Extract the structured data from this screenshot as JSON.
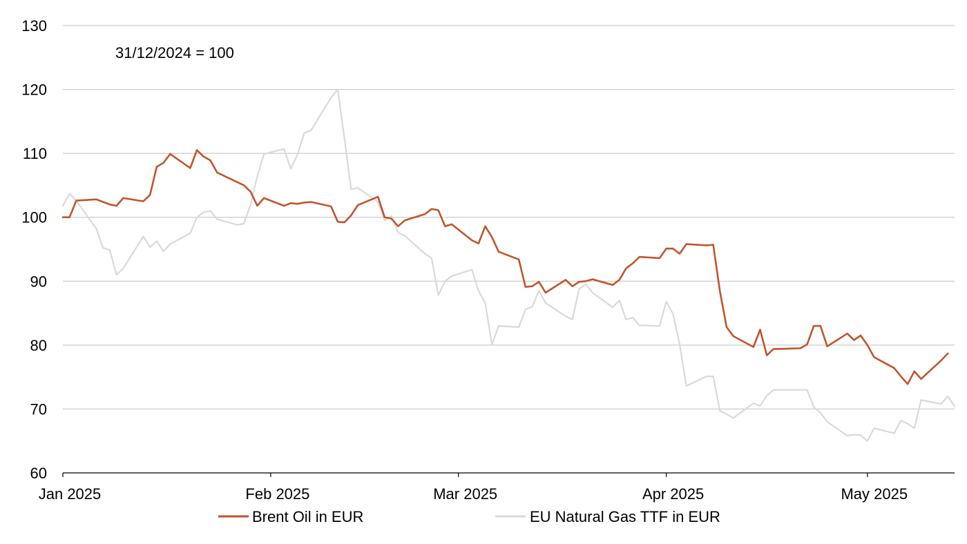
{
  "chart_data": {
    "type": "line",
    "title": "",
    "xlabel": "",
    "ylabel": "",
    "annotation": "31/12/2024 = 100",
    "xlim": [
      "2025-01-01",
      "2025-05-14"
    ],
    "ylim": [
      60,
      130
    ],
    "yticks": [
      60,
      70,
      80,
      90,
      100,
      110,
      120,
      130
    ],
    "xticks": [
      {
        "date": "2025-01-01",
        "label": "Jan 2025"
      },
      {
        "date": "2025-02-01",
        "label": "Feb 2025"
      },
      {
        "date": "2025-03-01",
        "label": "Mar 2025"
      },
      {
        "date": "2025-04-01",
        "label": "Apr 2025"
      },
      {
        "date": "2025-05-01",
        "label": "May 2025"
      }
    ],
    "grid": "horizontal",
    "legend_position": "bottom",
    "series": [
      {
        "name": "Brent Oil in EUR",
        "color": "#C0542B",
        "points": [
          [
            "2025-01-01",
            100.0
          ],
          [
            "2025-01-02",
            100.0
          ],
          [
            "2025-01-03",
            102.6
          ],
          [
            "2025-01-06",
            102.8
          ],
          [
            "2025-01-07",
            102.4
          ],
          [
            "2025-01-08",
            102.0
          ],
          [
            "2025-01-09",
            101.8
          ],
          [
            "2025-01-10",
            103.0
          ],
          [
            "2025-01-13",
            102.5
          ],
          [
            "2025-01-14",
            103.5
          ],
          [
            "2025-01-15",
            107.9
          ],
          [
            "2025-01-16",
            108.5
          ],
          [
            "2025-01-17",
            109.9
          ],
          [
            "2025-01-20",
            107.7
          ],
          [
            "2025-01-21",
            110.5
          ],
          [
            "2025-01-22",
            109.5
          ],
          [
            "2025-01-23",
            108.9
          ],
          [
            "2025-01-24",
            107.0
          ],
          [
            "2025-01-27",
            105.5
          ],
          [
            "2025-01-28",
            105.0
          ],
          [
            "2025-01-29",
            104.0
          ],
          [
            "2025-01-30",
            101.8
          ],
          [
            "2025-01-31",
            103.0
          ],
          [
            "2025-02-03",
            101.8
          ],
          [
            "2025-02-04",
            102.2
          ],
          [
            "2025-02-05",
            102.1
          ],
          [
            "2025-02-06",
            102.3
          ],
          [
            "2025-02-07",
            102.4
          ],
          [
            "2025-02-10",
            101.7
          ],
          [
            "2025-02-11",
            99.3
          ],
          [
            "2025-02-12",
            99.2
          ],
          [
            "2025-02-13",
            100.3
          ],
          [
            "2025-02-14",
            101.9
          ],
          [
            "2025-02-17",
            103.2
          ],
          [
            "2025-02-18",
            100.0
          ],
          [
            "2025-02-19",
            99.8
          ],
          [
            "2025-02-20",
            98.6
          ],
          [
            "2025-02-21",
            99.5
          ],
          [
            "2025-02-24",
            100.5
          ],
          [
            "2025-02-25",
            101.3
          ],
          [
            "2025-02-26",
            101.1
          ],
          [
            "2025-02-27",
            98.6
          ],
          [
            "2025-02-28",
            98.9
          ],
          [
            "2025-03-03",
            96.4
          ],
          [
            "2025-03-04",
            95.9
          ],
          [
            "2025-03-05",
            98.6
          ],
          [
            "2025-03-06",
            96.9
          ],
          [
            "2025-03-07",
            94.6
          ],
          [
            "2025-03-10",
            93.4
          ],
          [
            "2025-03-11",
            89.1
          ],
          [
            "2025-03-12",
            89.2
          ],
          [
            "2025-03-13",
            89.9
          ],
          [
            "2025-03-14",
            88.2
          ],
          [
            "2025-03-17",
            90.2
          ],
          [
            "2025-03-18",
            89.2
          ],
          [
            "2025-03-19",
            89.9
          ],
          [
            "2025-03-20",
            90.0
          ],
          [
            "2025-03-21",
            90.3
          ],
          [
            "2025-03-24",
            89.4
          ],
          [
            "2025-03-25",
            90.2
          ],
          [
            "2025-03-26",
            92.0
          ],
          [
            "2025-03-27",
            92.8
          ],
          [
            "2025-03-28",
            93.8
          ],
          [
            "2025-03-31",
            93.6
          ],
          [
            "2025-04-01",
            95.1
          ],
          [
            "2025-04-02",
            95.1
          ],
          [
            "2025-04-03",
            94.3
          ],
          [
            "2025-04-04",
            95.8
          ],
          [
            "2025-04-07",
            95.6
          ],
          [
            "2025-04-08",
            95.7
          ],
          [
            "2025-04-09",
            88.4
          ],
          [
            "2025-04-10",
            82.8
          ],
          [
            "2025-04-11",
            81.4
          ],
          [
            "2025-04-14",
            79.7
          ],
          [
            "2025-04-15",
            82.4
          ],
          [
            "2025-04-16",
            78.4
          ],
          [
            "2025-04-17",
            79.4
          ],
          [
            "2025-04-18",
            79.4
          ],
          [
            "2025-04-21",
            79.5
          ],
          [
            "2025-04-22",
            80.1
          ],
          [
            "2025-04-23",
            83.0
          ],
          [
            "2025-04-24",
            83.0
          ],
          [
            "2025-04-25",
            79.8
          ],
          [
            "2025-04-28",
            81.8
          ],
          [
            "2025-04-29",
            80.8
          ],
          [
            "2025-04-30",
            81.5
          ],
          [
            "2025-05-01",
            80.0
          ],
          [
            "2025-05-02",
            78.1
          ],
          [
            "2025-05-05",
            76.4
          ],
          [
            "2025-05-06",
            75.1
          ],
          [
            "2025-05-07",
            73.9
          ],
          [
            "2025-05-08",
            75.9
          ],
          [
            "2025-05-09",
            74.7
          ],
          [
            "2025-05-12",
            77.6
          ],
          [
            "2025-05-13",
            78.7
          ]
        ]
      },
      {
        "name": "EU Natural Gas TTF in EUR",
        "color": "#D9D9D9",
        "points": [
          [
            "2025-01-01",
            101.8
          ],
          [
            "2025-01-02",
            103.7
          ],
          [
            "2025-01-03",
            102.6
          ],
          [
            "2025-01-06",
            98.2
          ],
          [
            "2025-01-07",
            95.2
          ],
          [
            "2025-01-08",
            94.9
          ],
          [
            "2025-01-09",
            91.0
          ],
          [
            "2025-01-10",
            92.0
          ],
          [
            "2025-01-13",
            97.0
          ],
          [
            "2025-01-14",
            95.3
          ],
          [
            "2025-01-15",
            96.3
          ],
          [
            "2025-01-16",
            94.7
          ],
          [
            "2025-01-17",
            95.8
          ],
          [
            "2025-01-20",
            97.5
          ],
          [
            "2025-01-21",
            100.0
          ],
          [
            "2025-01-22",
            100.8
          ],
          [
            "2025-01-23",
            101.0
          ],
          [
            "2025-01-24",
            99.7
          ],
          [
            "2025-01-27",
            98.8
          ],
          [
            "2025-01-28",
            99.0
          ],
          [
            "2025-01-29",
            102.0
          ],
          [
            "2025-01-30",
            106.4
          ],
          [
            "2025-01-31",
            109.9
          ],
          [
            "2025-02-03",
            110.7
          ],
          [
            "2025-02-04",
            107.6
          ],
          [
            "2025-02-05",
            109.8
          ],
          [
            "2025-02-06",
            113.2
          ],
          [
            "2025-02-07",
            113.6
          ],
          [
            "2025-02-10",
            118.7
          ],
          [
            "2025-02-11",
            120.0
          ],
          [
            "2025-02-12",
            112.3
          ],
          [
            "2025-02-13",
            104.4
          ],
          [
            "2025-02-14",
            104.6
          ],
          [
            "2025-02-17",
            102.4
          ],
          [
            "2025-02-18",
            99.5
          ],
          [
            "2025-02-19",
            100.2
          ],
          [
            "2025-02-20",
            97.6
          ],
          [
            "2025-02-21",
            97.1
          ],
          [
            "2025-02-24",
            94.3
          ],
          [
            "2025-02-25",
            93.6
          ],
          [
            "2025-02-26",
            87.8
          ],
          [
            "2025-02-27",
            90.0
          ],
          [
            "2025-02-28",
            90.8
          ],
          [
            "2025-03-03",
            91.8
          ],
          [
            "2025-03-04",
            88.5
          ],
          [
            "2025-03-05",
            86.6
          ],
          [
            "2025-03-06",
            80.1
          ],
          [
            "2025-03-07",
            83.0
          ],
          [
            "2025-03-10",
            82.8
          ],
          [
            "2025-03-11",
            85.6
          ],
          [
            "2025-03-12",
            86.0
          ],
          [
            "2025-03-13",
            88.5
          ],
          [
            "2025-03-14",
            86.6
          ],
          [
            "2025-03-17",
            84.5
          ],
          [
            "2025-03-18",
            84.0
          ],
          [
            "2025-03-19",
            88.8
          ],
          [
            "2025-03-20",
            89.5
          ],
          [
            "2025-03-21",
            88.2
          ],
          [
            "2025-03-24",
            85.9
          ],
          [
            "2025-03-25",
            87.0
          ],
          [
            "2025-03-26",
            84.0
          ],
          [
            "2025-03-27",
            84.3
          ],
          [
            "2025-03-28",
            83.1
          ],
          [
            "2025-03-31",
            83.0
          ],
          [
            "2025-04-01",
            86.8
          ],
          [
            "2025-04-02",
            84.9
          ],
          [
            "2025-04-03",
            80.1
          ],
          [
            "2025-04-04",
            73.6
          ],
          [
            "2025-04-07",
            75.1
          ],
          [
            "2025-04-08",
            75.1
          ],
          [
            "2025-04-09",
            69.7
          ],
          [
            "2025-04-10",
            69.2
          ],
          [
            "2025-04-11",
            68.6
          ],
          [
            "2025-04-14",
            70.9
          ],
          [
            "2025-04-15",
            70.5
          ],
          [
            "2025-04-16",
            72.1
          ],
          [
            "2025-04-17",
            73.0
          ],
          [
            "2025-04-22",
            73.0
          ],
          [
            "2025-04-23",
            70.3
          ],
          [
            "2025-04-24",
            69.4
          ],
          [
            "2025-04-25",
            68.0
          ],
          [
            "2025-04-28",
            65.8
          ],
          [
            "2025-04-29",
            66.0
          ],
          [
            "2025-04-30",
            65.9
          ],
          [
            "2025-05-01",
            65.0
          ],
          [
            "2025-05-02",
            67.0
          ],
          [
            "2025-05-05",
            66.2
          ],
          [
            "2025-05-06",
            68.2
          ],
          [
            "2025-05-07",
            67.7
          ],
          [
            "2025-05-08",
            67.0
          ],
          [
            "2025-05-09",
            71.4
          ],
          [
            "2025-05-12",
            70.8
          ],
          [
            "2025-05-13",
            72.0
          ],
          [
            "2025-05-14",
            70.4
          ]
        ]
      }
    ]
  }
}
